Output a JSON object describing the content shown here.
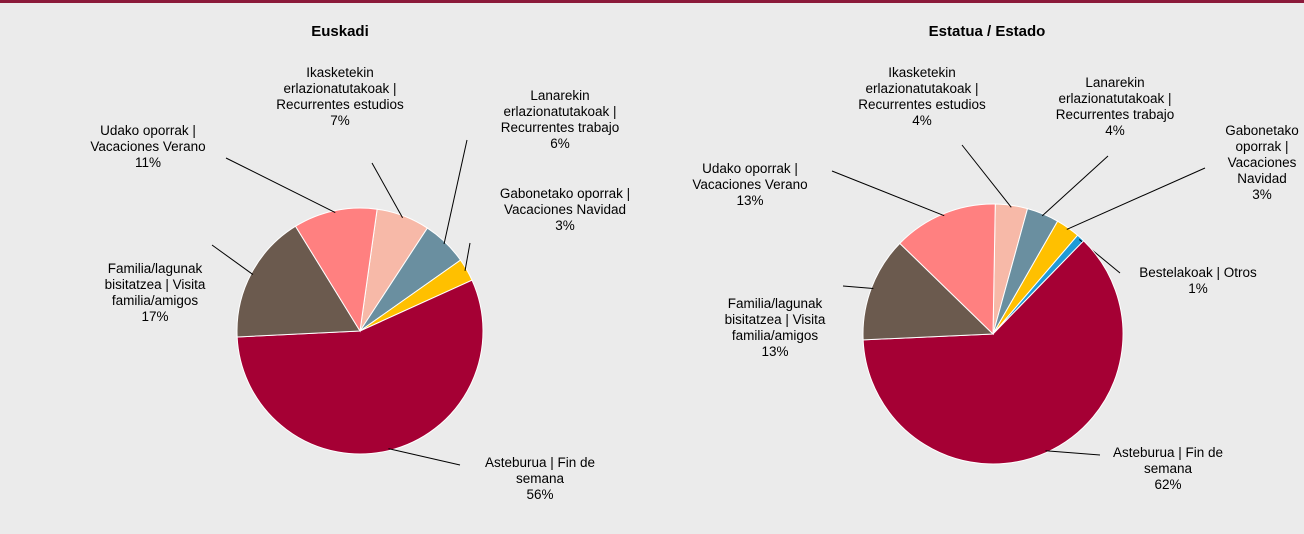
{
  "chart_data": [
    {
      "type": "pie",
      "title": "Euskadi",
      "categories": [
        "Ikasketekin erlazionatutakoak | Recurrentes estudios",
        "Lanarekin erlazionatutakoak | Recurrentes trabajo",
        "Gabonetako oporrak | Vacaciones Navidad",
        "Asteburua | Fin de semana",
        "Familia/lagunak bisitatzea | Visita familia/amigos",
        "Udako oporrak | Vacaciones Verano"
      ],
      "values": [
        7,
        6,
        3,
        56,
        17,
        11
      ],
      "value_labels": [
        "7%",
        "6%",
        "3%",
        "56%",
        "17%",
        "11%"
      ],
      "colors": [
        "#f7b9a8",
        "#6a8fa0",
        "#ffc000",
        "#a50034",
        "#6b5a4e",
        "#ff8080"
      ]
    },
    {
      "type": "pie",
      "title": "Estatua / Estado",
      "categories": [
        "Ikasketekin erlazionatutakoak | Recurrentes estudios",
        "Lanarekin erlazionatutakoak | Recurrentes trabajo",
        "Gabonetako oporrak | Vacaciones Navidad",
        "Bestelakoak | Otros",
        "Asteburua | Fin de semana",
        "Familia/lagunak bisitatzea | Visita familia/amigos",
        "Udako oporrak | Vacaciones Verano"
      ],
      "values": [
        4,
        4,
        3,
        1,
        62,
        13,
        13
      ],
      "value_labels": [
        "4%",
        "4%",
        "3%",
        "1%",
        "62%",
        "13%",
        "13%"
      ],
      "colors": [
        "#f7b9a8",
        "#6a8fa0",
        "#ffc000",
        "#1f9bd7",
        "#a50034",
        "#6b5a4e",
        "#ff8080"
      ]
    }
  ]
}
